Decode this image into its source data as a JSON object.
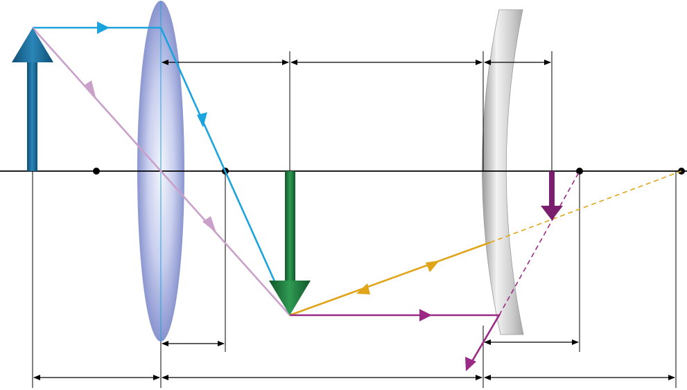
{
  "diagram": {
    "kind": "optics ray diagram: converging lens followed by convex mirror",
    "labels": [],
    "colors": {
      "axis": "#000000",
      "object_arrow": "#1f6f9a",
      "intermediate_image_arrow": "#1e7a3c",
      "final_image_arrow": "#7a1f6e",
      "ray_parallel": "#1aa3dd",
      "ray_central": "#c9a0c9",
      "ray_mirror_axis": "#e0a419",
      "ray_mirror_parallel": "#9b2a86",
      "lens_fill": "#aab4e0",
      "mirror_fill": "#c8c8c8",
      "dimension_lines": "#000000"
    }
  }
}
